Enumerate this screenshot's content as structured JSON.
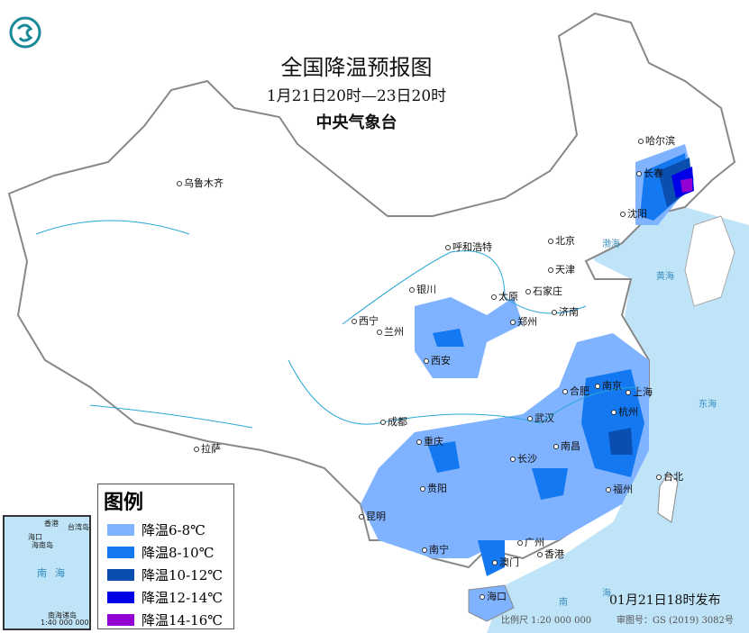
{
  "title": "全国降温预报图",
  "period": "1月21日20时—23日20时",
  "issuer": "中央气象台",
  "legend": {
    "title": "图例",
    "items": [
      {
        "label": "降温6-8℃",
        "color": "#7fb2ff"
      },
      {
        "label": "降温8-10℃",
        "color": "#1478f0"
      },
      {
        "label": "降温10-12℃",
        "color": "#0a4fb0"
      },
      {
        "label": "降温12-14℃",
        "color": "#0000e6"
      },
      {
        "label": "降温14-16℃",
        "color": "#9400d3"
      }
    ]
  },
  "cities": [
    "乌鲁木齐",
    "哈尔滨",
    "长春",
    "沈阳",
    "呼和浩特",
    "北京",
    "天津",
    "石家庄",
    "银川",
    "太原",
    "济南",
    "西宁",
    "兰州",
    "郑州",
    "西安",
    "合肥",
    "南京",
    "上海",
    "武汉",
    "杭州",
    "成都",
    "拉萨",
    "重庆",
    "长沙",
    "南昌",
    "贵阳",
    "福州",
    "台北",
    "昆明",
    "南宁",
    "广州",
    "香港",
    "澳门",
    "海口"
  ],
  "seas": [
    "渤海",
    "黄海",
    "东海",
    "南",
    "海"
  ],
  "inset": {
    "labels": [
      "香港",
      "台湾岛",
      "海口",
      "海南岛",
      "南",
      "海",
      "南海诸岛",
      "1:40 000 000"
    ]
  },
  "published": "01月21日18时发布",
  "scale": "比例尺 1:20 000 000",
  "review_number": "审图号：GS (2019) 3082号",
  "colors": {
    "sea": "#bfe3f7",
    "land": "#ffffff",
    "border": "#888888"
  }
}
